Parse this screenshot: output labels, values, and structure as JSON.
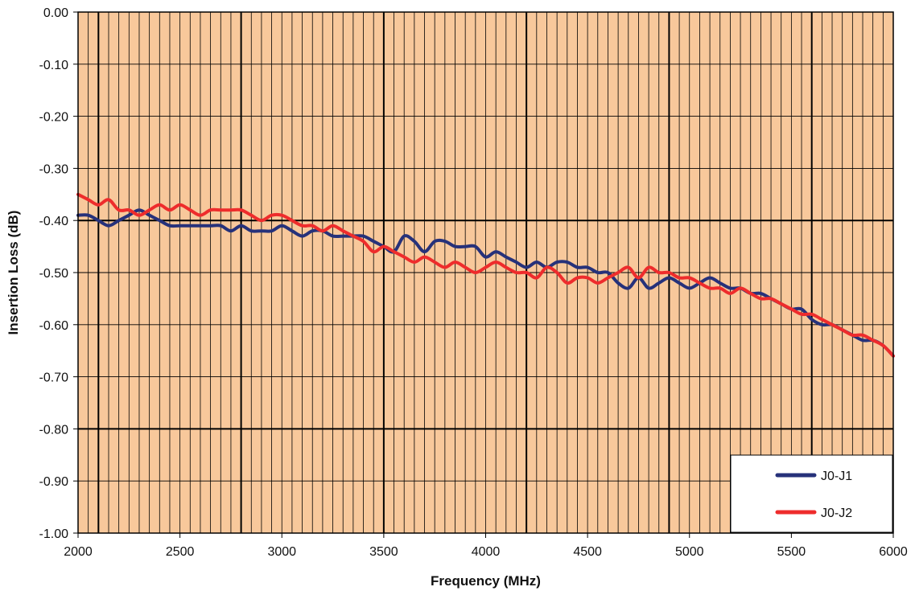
{
  "chart_data": {
    "type": "line",
    "xlabel": "Frequency (MHz)",
    "ylabel": "Insertion Loss (dB)",
    "xlim": [
      2000,
      6000
    ],
    "ylim": [
      -1.0,
      0.0
    ],
    "xticks": [
      "2000",
      "2500",
      "3000",
      "3500",
      "4000",
      "4500",
      "5000",
      "5500",
      "6000"
    ],
    "yticks": [
      "0.00",
      "-0.10",
      "-0.20",
      "-0.30",
      "-0.40",
      "-0.50",
      "-0.60",
      "-0.70",
      "-0.80",
      "-0.90",
      "-1.00"
    ],
    "plot_background": "#f8c89b",
    "grid": true,
    "legend_position": "bottom-right",
    "series": [
      {
        "name": "J0-J1",
        "color": "#26317a",
        "points": [
          [
            2000,
            -0.39
          ],
          [
            2050,
            -0.39
          ],
          [
            2100,
            -0.4
          ],
          [
            2150,
            -0.41
          ],
          [
            2200,
            -0.4
          ],
          [
            2250,
            -0.39
          ],
          [
            2300,
            -0.38
          ],
          [
            2350,
            -0.39
          ],
          [
            2400,
            -0.4
          ],
          [
            2450,
            -0.41
          ],
          [
            2500,
            -0.41
          ],
          [
            2550,
            -0.41
          ],
          [
            2600,
            -0.41
          ],
          [
            2650,
            -0.41
          ],
          [
            2700,
            -0.41
          ],
          [
            2750,
            -0.42
          ],
          [
            2800,
            -0.41
          ],
          [
            2850,
            -0.42
          ],
          [
            2900,
            -0.42
          ],
          [
            2950,
            -0.42
          ],
          [
            3000,
            -0.41
          ],
          [
            3050,
            -0.42
          ],
          [
            3100,
            -0.43
          ],
          [
            3150,
            -0.42
          ],
          [
            3200,
            -0.42
          ],
          [
            3250,
            -0.43
          ],
          [
            3300,
            -0.43
          ],
          [
            3350,
            -0.43
          ],
          [
            3400,
            -0.43
          ],
          [
            3450,
            -0.44
          ],
          [
            3500,
            -0.45
          ],
          [
            3550,
            -0.46
          ],
          [
            3600,
            -0.43
          ],
          [
            3650,
            -0.44
          ],
          [
            3700,
            -0.46
          ],
          [
            3750,
            -0.44
          ],
          [
            3800,
            -0.44
          ],
          [
            3850,
            -0.45
          ],
          [
            3900,
            -0.45
          ],
          [
            3950,
            -0.45
          ],
          [
            4000,
            -0.47
          ],
          [
            4050,
            -0.46
          ],
          [
            4100,
            -0.47
          ],
          [
            4150,
            -0.48
          ],
          [
            4200,
            -0.49
          ],
          [
            4250,
            -0.48
          ],
          [
            4300,
            -0.49
          ],
          [
            4350,
            -0.48
          ],
          [
            4400,
            -0.48
          ],
          [
            4450,
            -0.49
          ],
          [
            4500,
            -0.49
          ],
          [
            4550,
            -0.5
          ],
          [
            4600,
            -0.5
          ],
          [
            4650,
            -0.52
          ],
          [
            4700,
            -0.53
          ],
          [
            4750,
            -0.51
          ],
          [
            4800,
            -0.53
          ],
          [
            4850,
            -0.52
          ],
          [
            4900,
            -0.51
          ],
          [
            4950,
            -0.52
          ],
          [
            5000,
            -0.53
          ],
          [
            5050,
            -0.52
          ],
          [
            5100,
            -0.51
          ],
          [
            5150,
            -0.52
          ],
          [
            5200,
            -0.53
          ],
          [
            5250,
            -0.53
          ],
          [
            5300,
            -0.54
          ],
          [
            5350,
            -0.54
          ],
          [
            5400,
            -0.55
          ],
          [
            5450,
            -0.56
          ],
          [
            5500,
            -0.57
          ],
          [
            5550,
            -0.57
          ],
          [
            5600,
            -0.59
          ],
          [
            5650,
            -0.6
          ],
          [
            5700,
            -0.6
          ],
          [
            5750,
            -0.61
          ],
          [
            5800,
            -0.62
          ],
          [
            5850,
            -0.63
          ],
          [
            5900,
            -0.63
          ],
          [
            5950,
            -0.64
          ],
          [
            6000,
            -0.66
          ]
        ]
      },
      {
        "name": "J0-J2",
        "color": "#ee2c2c",
        "points": [
          [
            2000,
            -0.35
          ],
          [
            2050,
            -0.36
          ],
          [
            2100,
            -0.37
          ],
          [
            2150,
            -0.36
          ],
          [
            2200,
            -0.38
          ],
          [
            2250,
            -0.38
          ],
          [
            2300,
            -0.39
          ],
          [
            2350,
            -0.38
          ],
          [
            2400,
            -0.37
          ],
          [
            2450,
            -0.38
          ],
          [
            2500,
            -0.37
          ],
          [
            2550,
            -0.38
          ],
          [
            2600,
            -0.39
          ],
          [
            2650,
            -0.38
          ],
          [
            2700,
            -0.38
          ],
          [
            2750,
            -0.38
          ],
          [
            2800,
            -0.38
          ],
          [
            2850,
            -0.39
          ],
          [
            2900,
            -0.4
          ],
          [
            2950,
            -0.39
          ],
          [
            3000,
            -0.39
          ],
          [
            3050,
            -0.4
          ],
          [
            3100,
            -0.41
          ],
          [
            3150,
            -0.41
          ],
          [
            3200,
            -0.42
          ],
          [
            3250,
            -0.41
          ],
          [
            3300,
            -0.42
          ],
          [
            3350,
            -0.43
          ],
          [
            3400,
            -0.44
          ],
          [
            3450,
            -0.46
          ],
          [
            3500,
            -0.45
          ],
          [
            3550,
            -0.46
          ],
          [
            3600,
            -0.47
          ],
          [
            3650,
            -0.48
          ],
          [
            3700,
            -0.47
          ],
          [
            3750,
            -0.48
          ],
          [
            3800,
            -0.49
          ],
          [
            3850,
            -0.48
          ],
          [
            3900,
            -0.49
          ],
          [
            3950,
            -0.5
          ],
          [
            4000,
            -0.49
          ],
          [
            4050,
            -0.48
          ],
          [
            4100,
            -0.49
          ],
          [
            4150,
            -0.5
          ],
          [
            4200,
            -0.5
          ],
          [
            4250,
            -0.51
          ],
          [
            4300,
            -0.49
          ],
          [
            4350,
            -0.5
          ],
          [
            4400,
            -0.52
          ],
          [
            4450,
            -0.51
          ],
          [
            4500,
            -0.51
          ],
          [
            4550,
            -0.52
          ],
          [
            4600,
            -0.51
          ],
          [
            4650,
            -0.5
          ],
          [
            4700,
            -0.49
          ],
          [
            4750,
            -0.51
          ],
          [
            4800,
            -0.49
          ],
          [
            4850,
            -0.5
          ],
          [
            4900,
            -0.5
          ],
          [
            4950,
            -0.51
          ],
          [
            5000,
            -0.51
          ],
          [
            5050,
            -0.52
          ],
          [
            5100,
            -0.53
          ],
          [
            5150,
            -0.53
          ],
          [
            5200,
            -0.54
          ],
          [
            5250,
            -0.53
          ],
          [
            5300,
            -0.54
          ],
          [
            5350,
            -0.55
          ],
          [
            5400,
            -0.55
          ],
          [
            5450,
            -0.56
          ],
          [
            5500,
            -0.57
          ],
          [
            5550,
            -0.58
          ],
          [
            5600,
            -0.58
          ],
          [
            5650,
            -0.59
          ],
          [
            5700,
            -0.6
          ],
          [
            5750,
            -0.61
          ],
          [
            5800,
            -0.62
          ],
          [
            5850,
            -0.62
          ],
          [
            5900,
            -0.63
          ],
          [
            5950,
            -0.64
          ],
          [
            6000,
            -0.66
          ]
        ]
      }
    ]
  }
}
